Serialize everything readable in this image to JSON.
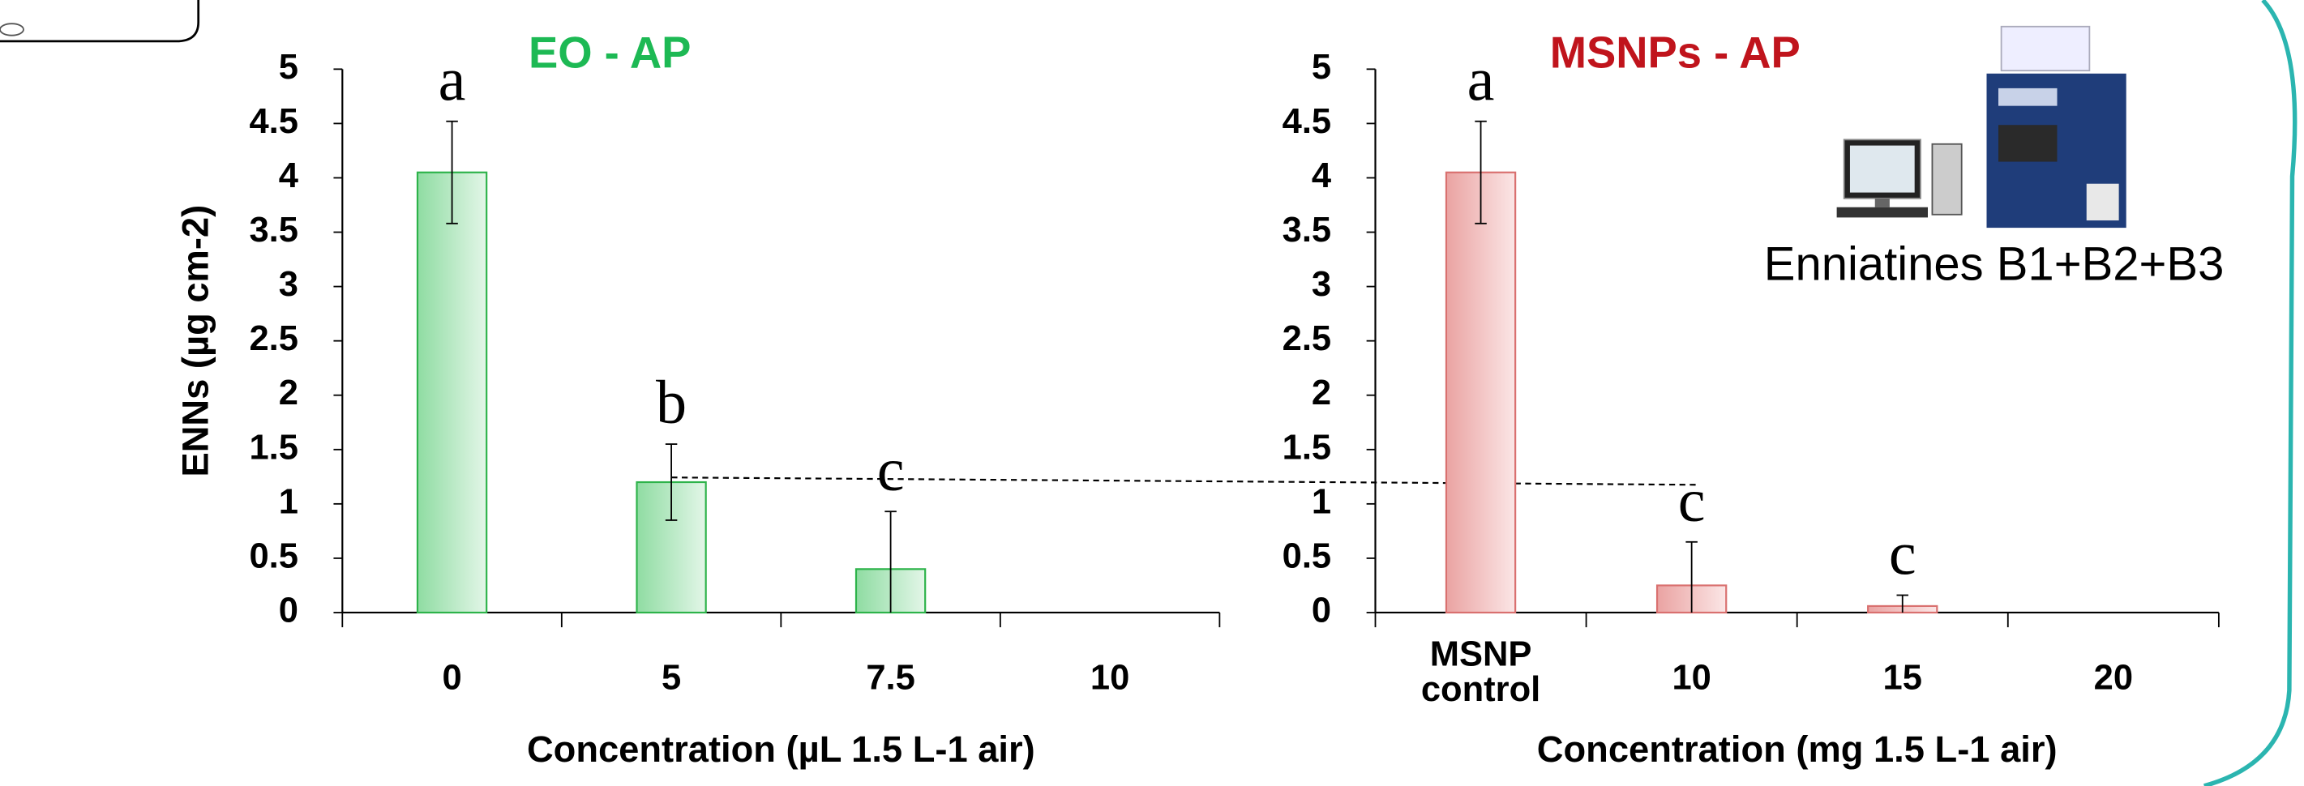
{
  "charts": [
    {
      "type": "bar",
      "title": "EO -  AP",
      "title_color": "#1db954",
      "y_label": "ENNs (µg cm-2)",
      "x_label": "Concentration (µL 1.5 L-1 air)",
      "categories": [
        "0",
        "5",
        "7.5",
        "10"
      ],
      "values": [
        4.05,
        1.2,
        0.4,
        null
      ],
      "errors": [
        0.47,
        0.35,
        0.53,
        null
      ],
      "letters": [
        "a",
        "b",
        "c",
        null
      ],
      "color": "#2db34a",
      "ylim": [
        0,
        5
      ],
      "yticks": [
        0,
        0.5,
        1,
        1.5,
        2,
        2.5,
        3,
        3.5,
        4,
        4.5,
        5
      ]
    },
    {
      "type": "bar",
      "title": "MSNPs - AP",
      "title_color": "#c0141c",
      "x_label": "Concentration (mg 1.5 L-1 air)",
      "categories": [
        "MSNP control",
        "10",
        "15",
        "20"
      ],
      "values": [
        4.05,
        0.25,
        0.06,
        null
      ],
      "errors": [
        0.47,
        0.4,
        0.1,
        null
      ],
      "letters": [
        "a",
        "c",
        "c",
        null
      ],
      "color": "#d9706f",
      "ylim": [
        0,
        5
      ],
      "yticks": [
        0,
        0.5,
        1,
        1.5,
        2,
        2.5,
        3,
        3.5,
        4,
        4.5,
        5
      ]
    }
  ],
  "annotation": "Enniatines B1+B2+B3"
}
